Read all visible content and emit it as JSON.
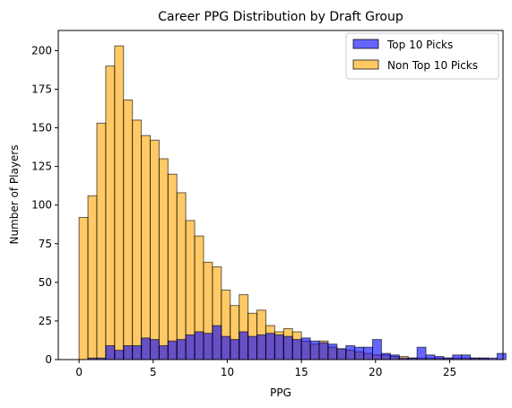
{
  "chart_data": {
    "type": "bar",
    "title": "Career PPG Distribution by Draft Group",
    "xlabel": "PPG",
    "ylabel": "Number of Players",
    "xlim": [
      -1.4,
      28.6
    ],
    "ylim": [
      0,
      213
    ],
    "xticks": [
      0,
      5,
      10,
      15,
      20,
      25
    ],
    "yticks": [
      0,
      25,
      50,
      75,
      100,
      125,
      150,
      175,
      200
    ],
    "legend_position": "upper right",
    "series": [
      {
        "name": "Non Top 10 Picks",
        "color": "#FFA500",
        "bin_start": 0,
        "bin_width": 0.6,
        "values": [
          92,
          106,
          153,
          190,
          203,
          168,
          155,
          145,
          142,
          130,
          120,
          108,
          90,
          80,
          63,
          60,
          45,
          35,
          42,
          30,
          32,
          22,
          18,
          20,
          18,
          12,
          10,
          12,
          8,
          7,
          6,
          5,
          4,
          3,
          3,
          2,
          2,
          1,
          1,
          1,
          1,
          1,
          1,
          1,
          1,
          1
        ]
      },
      {
        "name": "Top 10 Picks",
        "color": "#0000FF",
        "bin_start": 0,
        "bin_width": 0.6,
        "values": [
          0,
          1,
          1,
          9,
          6,
          9,
          9,
          14,
          13,
          9,
          12,
          13,
          16,
          18,
          17,
          22,
          15,
          13,
          18,
          15,
          16,
          17,
          16,
          15,
          13,
          14,
          12,
          11,
          10,
          7,
          9,
          8,
          8,
          13,
          4,
          3,
          1,
          1,
          8,
          3,
          2,
          1,
          3,
          3,
          1,
          1,
          1,
          4
        ]
      }
    ]
  }
}
